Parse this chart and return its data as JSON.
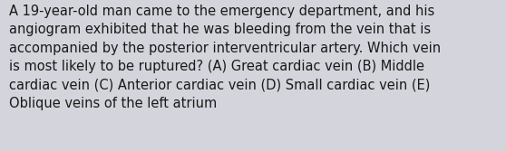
{
  "lines": [
    "A 19-year-old man came to the emergency department, and his",
    "angiogram exhibited that he was bleeding from the vein that is",
    "accompanied by the posterior interventricular artery. Which vein",
    "is most likely to be ruptured? (A) Great cardiac vein (B) Middle",
    "cardiac vein (C) Anterior cardiac vein (D) Small cardiac vein (E)",
    "Oblique veins of the left atrium"
  ],
  "background_color": "#d4d4dc",
  "text_color": "#1a1a1a",
  "font_size": 10.5,
  "fig_width": 5.58,
  "fig_height": 1.67,
  "dpi": 100
}
